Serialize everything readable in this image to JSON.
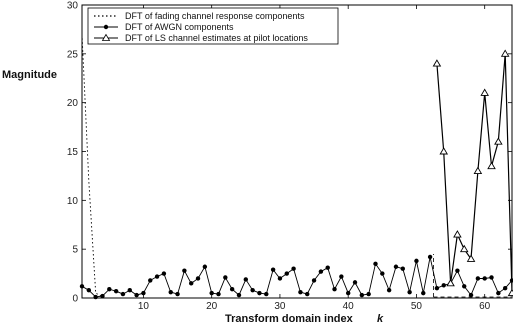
{
  "chart_data": {
    "type": "line",
    "title": "",
    "xlabel": "Transform domain index",
    "xlabel_symbol": "k",
    "ylabel": "Magnitude",
    "xlim": [
      1,
      64
    ],
    "ylim": [
      0,
      30
    ],
    "xticks": [
      10,
      20,
      30,
      40,
      50,
      60
    ],
    "yticks": [
      0,
      5,
      10,
      15,
      20,
      25,
      30
    ],
    "grid": false,
    "legend_position": "top-left",
    "pilot_region": [
      53,
      64
    ],
    "series": [
      {
        "name": "DFT of fading channel response components",
        "style": "dotted",
        "marker": "none",
        "color": "#000000",
        "x": [
          1,
          2,
          3,
          4
        ],
        "values": [
          27,
          12,
          0.5,
          0.1
        ]
      },
      {
        "name": "DFT of AWGN components",
        "style": "solid",
        "marker": "filled-dot",
        "color": "#000000",
        "x": [
          1,
          2,
          3,
          4,
          5,
          6,
          7,
          8,
          9,
          10,
          11,
          12,
          13,
          14,
          15,
          16,
          17,
          18,
          19,
          20,
          21,
          22,
          23,
          24,
          25,
          26,
          27,
          28,
          29,
          30,
          31,
          32,
          33,
          34,
          35,
          36,
          37,
          38,
          39,
          40,
          41,
          42,
          43,
          44,
          45,
          46,
          47,
          48,
          49,
          50,
          51,
          52,
          53,
          54,
          55,
          56,
          57,
          58,
          59,
          60,
          61,
          62,
          63,
          64
        ],
        "values": [
          1.2,
          0.8,
          0.1,
          0.2,
          0.9,
          0.7,
          0.4,
          0.8,
          0.3,
          0.5,
          1.8,
          2.2,
          2.5,
          0.6,
          0.4,
          2.8,
          1.5,
          2.0,
          3.2,
          0.5,
          0.4,
          2.1,
          0.9,
          0.3,
          1.9,
          0.8,
          0.5,
          0.4,
          2.9,
          2.0,
          2.5,
          3.0,
          0.6,
          0.4,
          1.8,
          2.7,
          3.1,
          0.9,
          2.2,
          0.5,
          1.6,
          0.3,
          0.4,
          3.5,
          2.5,
          0.8,
          3.2,
          3.0,
          0.6,
          3.8,
          0.5,
          4.2,
          1.0,
          1.3,
          1.5,
          2.8,
          1.2,
          0.3,
          2.0,
          2.0,
          2.1,
          0.5,
          1.0,
          1.8
        ]
      },
      {
        "name": "DFT of LS channel estimates at pilot locations",
        "style": "solid",
        "marker": "open-triangle",
        "color": "#000000",
        "x": [
          53,
          54,
          55,
          56,
          57,
          58,
          59,
          60,
          61,
          62,
          63,
          64
        ],
        "values": [
          24,
          15,
          1.5,
          6.5,
          5.0,
          4.0,
          13,
          21,
          13.5,
          16,
          25,
          0.5
        ]
      }
    ]
  }
}
